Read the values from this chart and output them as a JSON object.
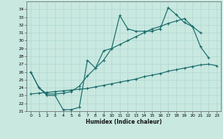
{
  "xlabel": "Humidex (Indice chaleur)",
  "xlim": [
    -0.5,
    23.5
  ],
  "ylim": [
    21,
    35
  ],
  "xticks": [
    0,
    1,
    2,
    3,
    4,
    5,
    6,
    7,
    8,
    9,
    10,
    11,
    12,
    13,
    14,
    15,
    16,
    17,
    18,
    19,
    20,
    21,
    22,
    23
  ],
  "yticks": [
    21,
    22,
    23,
    24,
    25,
    26,
    27,
    28,
    29,
    30,
    31,
    32,
    33,
    34
  ],
  "bg_color": "#c8e8e0",
  "line_color": "#1a6b6b",
  "grid_color": "#b0d8d0",
  "line1_y": [
    26.0,
    24.0,
    23.0,
    23.0,
    21.2,
    21.2,
    21.5,
    27.5,
    26.5,
    28.7,
    29.0,
    33.2,
    31.5,
    31.2,
    31.2,
    31.2,
    31.5,
    34.2,
    33.3,
    32.3,
    31.8,
    29.2,
    27.8,
    null
  ],
  "line2_y": [
    23.2,
    23.3,
    23.4,
    23.5,
    23.6,
    23.7,
    23.8,
    23.9,
    24.1,
    24.3,
    24.5,
    24.7,
    24.9,
    25.1,
    25.4,
    25.6,
    25.8,
    26.1,
    26.3,
    26.5,
    26.7,
    26.9,
    27.0,
    26.8
  ],
  "line3_y": [
    26.0,
    24.0,
    23.2,
    23.2,
    23.3,
    23.5,
    24.2,
    25.5,
    26.5,
    27.5,
    29.0,
    29.5,
    30.0,
    30.5,
    31.0,
    31.5,
    31.8,
    32.2,
    32.5,
    32.8,
    31.8,
    31.0,
    null,
    null
  ]
}
